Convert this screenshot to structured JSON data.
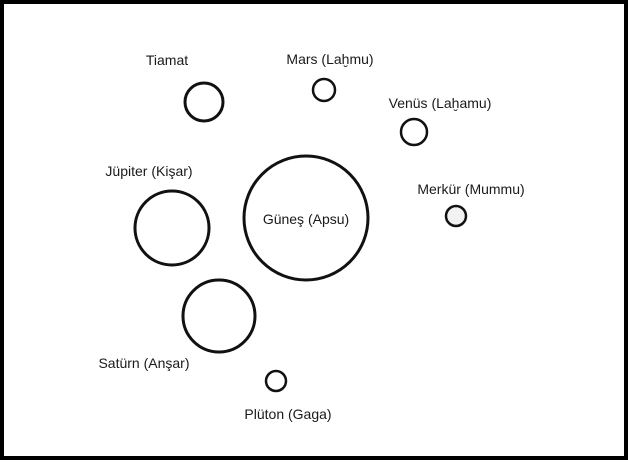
{
  "diagram": {
    "bodies": [
      {
        "id": "gunes",
        "label": "Güneş (Apsu)"
      },
      {
        "id": "tiamat",
        "label": "Tiamat"
      },
      {
        "id": "mars",
        "label": "Mars (Laḫmu)"
      },
      {
        "id": "venus",
        "label": "Venüs (Laḫamu)"
      },
      {
        "id": "merkur",
        "label": "Merkür (Mummu)"
      },
      {
        "id": "jupiter",
        "label": "Jüpiter (Kişar)"
      },
      {
        "id": "saturn",
        "label": "Satürn (Anşar)"
      },
      {
        "id": "pluton",
        "label": "Plüton (Gaga)"
      }
    ]
  }
}
